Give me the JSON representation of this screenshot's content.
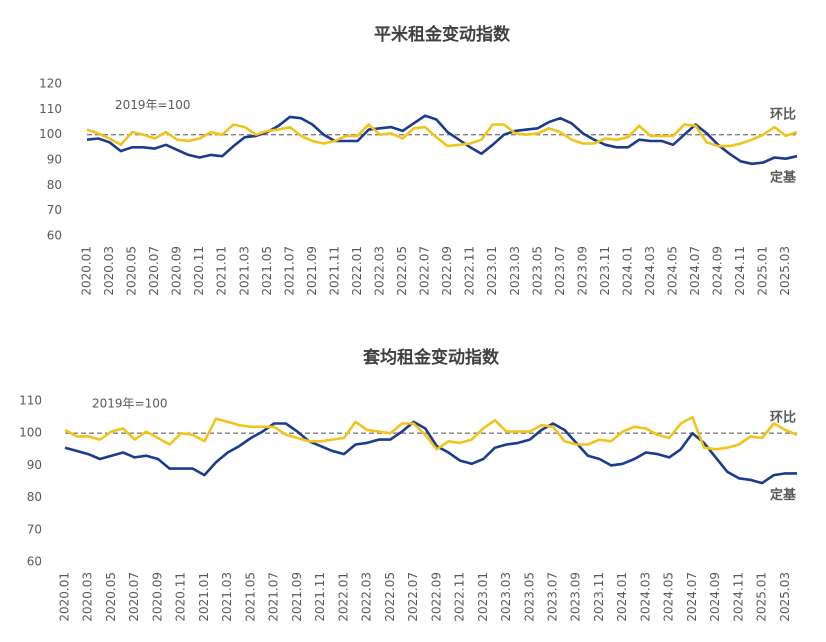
{
  "chart_data": [
    {
      "type": "line",
      "title": "平米租金变动指数",
      "annotation": "2019年=100",
      "reference": 100,
      "categories": [
        "2020.01",
        null,
        "2020.03",
        null,
        "2020.05",
        null,
        "2020.07",
        null,
        "2020.09",
        null,
        "2020.11",
        null,
        "2021.01",
        null,
        "2021.03",
        null,
        "2021.05",
        null,
        "2021.07",
        null,
        "2021.09",
        null,
        "2021.11",
        null,
        "2022.01",
        null,
        "2022.03",
        null,
        "2022.05",
        null,
        "2022.07",
        null,
        "2022.09",
        null,
        "2022.11",
        null,
        "2023.01",
        null,
        "2023.03",
        null,
        "2023.05",
        null,
        "2023.07",
        null,
        "2023.09",
        null,
        "2023.11",
        null,
        "2024.01",
        null,
        "2024.03",
        null,
        "2024.05",
        null,
        "2024.07",
        null,
        "2024.09",
        null,
        "2024.11",
        null,
        "2025.01",
        null,
        "2025.03",
        null
      ],
      "series": [
        {
          "name": "定基",
          "color": "#1b3c8c",
          "values": [
            98,
            98.5,
            97,
            93.5,
            95,
            95,
            94.5,
            96,
            94,
            92,
            91,
            92,
            91.5,
            95.5,
            99,
            99.5,
            101,
            103.5,
            107,
            106.5,
            104,
            100,
            97.5,
            97.5,
            97.5,
            102,
            102.5,
            103,
            101.5,
            104.5,
            107.5,
            106,
            101,
            98,
            95,
            92.5,
            96,
            100,
            101.5,
            102,
            102.5,
            105,
            106.5,
            104.5,
            100.5,
            98,
            96,
            95,
            95,
            98,
            97.5,
            97.5,
            96,
            100,
            104,
            100.5,
            96,
            92.5,
            89.5,
            88.5,
            89,
            91,
            90.5,
            91.5
          ]
        },
        {
          "name": "环比",
          "color": "#f2c31a",
          "values": [
            102,
            100.5,
            98.5,
            96,
            101,
            100,
            98.5,
            101,
            98,
            97.5,
            98.5,
            101,
            100,
            104,
            103,
            100,
            101.5,
            102,
            103,
            99.5,
            97.5,
            96.5,
            97.5,
            99.5,
            99.5,
            104,
            100,
            100.5,
            98.5,
            102.5,
            103,
            99,
            95.5,
            96,
            96.5,
            98,
            104,
            104,
            100.5,
            100,
            100.5,
            102.5,
            101,
            98,
            96.5,
            96.5,
            98.5,
            98,
            99,
            103.5,
            99.5,
            99.5,
            99.5,
            104,
            103.5,
            97,
            95.5,
            95.5,
            96.5,
            98,
            100,
            103,
            99.5,
            101
          ]
        }
      ],
      "ylim": [
        60,
        120
      ],
      "yticks": [
        60,
        70,
        80,
        90,
        100,
        110,
        120
      ]
    },
    {
      "type": "line",
      "title": "套均租金变动指数",
      "annotation": "2019年=100",
      "reference": 100,
      "categories": [
        "2020.01",
        null,
        "2020.03",
        null,
        "2020.05",
        null,
        "2020.07",
        null,
        "2020.09",
        null,
        "2020.11",
        null,
        "2021.01",
        null,
        "2021.03",
        null,
        "2021.05",
        null,
        "2021.07",
        null,
        "2021.09",
        null,
        "2021.11",
        null,
        "2022.01",
        null,
        "2022.03",
        null,
        "2022.05",
        null,
        "2022.07",
        null,
        "2022.09",
        null,
        "2022.11",
        null,
        "2023.01",
        null,
        "2023.03",
        null,
        "2023.05",
        null,
        "2023.07",
        null,
        "2023.09",
        null,
        "2023.11",
        null,
        "2024.01",
        null,
        "2024.03",
        null,
        "2024.05",
        null,
        "2024.07",
        null,
        "2024.09",
        null,
        "2024.11",
        null,
        "2025.01",
        null,
        "2025.03",
        null
      ],
      "series": [
        {
          "name": "定基",
          "color": "#1b3c8c",
          "values": [
            95.5,
            94.5,
            93.5,
            92,
            93,
            94,
            92.5,
            93,
            92,
            89,
            89,
            89,
            87,
            91,
            94,
            96,
            98.5,
            100.5,
            103,
            103,
            100.5,
            97.5,
            96,
            94.5,
            93.5,
            96.5,
            97,
            98,
            98,
            100.5,
            103.5,
            101.5,
            96,
            94,
            91.5,
            90.5,
            92,
            95.5,
            96.5,
            97,
            98,
            101,
            103,
            101,
            97,
            93,
            92,
            90,
            90.5,
            92,
            94,
            93.5,
            92.5,
            95,
            100,
            97,
            92.5,
            88,
            86,
            85.5,
            84.5,
            87,
            87.5,
            87.5
          ]
        },
        {
          "name": "环比",
          "color": "#f2c31a",
          "values": [
            101,
            99,
            99,
            98,
            100.5,
            101.5,
            98,
            100.5,
            98.5,
            96.5,
            100,
            99.5,
            97.5,
            104.5,
            103.5,
            102.5,
            102,
            102,
            102,
            99.5,
            98.5,
            97.5,
            97.5,
            98,
            98.5,
            103.5,
            101,
            100.5,
            100,
            103,
            103,
            99.5,
            95,
            97.5,
            97,
            98,
            101.5,
            104,
            100.5,
            100.5,
            100.5,
            102.5,
            102,
            97.5,
            96.5,
            96.5,
            98,
            97.5,
            100.5,
            102,
            101.5,
            99.5,
            98.5,
            103,
            105,
            95.5,
            95,
            95.5,
            96.5,
            99,
            98.5,
            103,
            101,
            99.5
          ]
        }
      ],
      "ylim": [
        60,
        110
      ],
      "yticks": [
        60,
        70,
        80,
        90,
        100,
        110
      ]
    }
  ]
}
